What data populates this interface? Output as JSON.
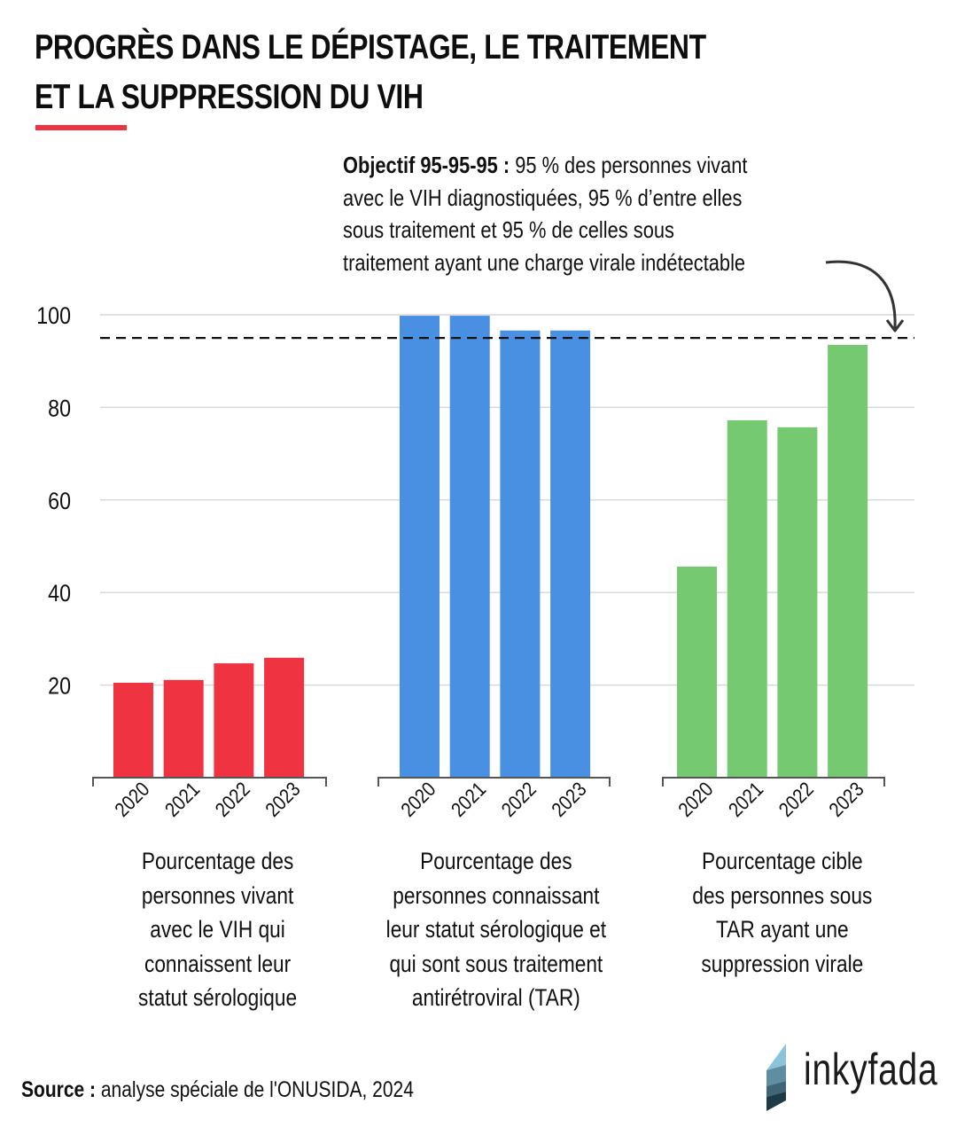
{
  "header": {
    "title_lines": [
      "PROGRÈS DANS LE DÉPISTAGE, LE TRAITEMENT",
      "ET LA SUPPRESSION DU VIH"
    ],
    "accent_color": "#ef3340"
  },
  "annotation": {
    "bold_prefix": "Objectif 95-95-95 :",
    "line1_rest": " 95 % des personnes vivant",
    "line2": "avec le VIH diagnostiquées, 95 % d’entre elles",
    "line3": "sous traitement et 95 % de celles sous",
    "line4": "traitement ayant une charge virale indétectable"
  },
  "chart_data": {
    "type": "bar",
    "title": "PROGRÈS DANS LE DÉPISTAGE, LE TRAITEMENT ET LA SUPPRESSION DU VIH",
    "xlabel": "",
    "ylabel": "",
    "ylim": [
      0,
      100
    ],
    "yticks": [
      20,
      40,
      60,
      80,
      100
    ],
    "grid": true,
    "categories": [
      "2020",
      "2021",
      "2022",
      "2023"
    ],
    "reference_line": {
      "value": 95,
      "style": "dashed",
      "label": "Objectif 95-95-95"
    },
    "groups": [
      {
        "name": "Pourcentage des personnes vivant avec le VIH qui connaissent leur statut sérologique",
        "label_lines": [
          "Pourcentage des",
          "personnes vivant",
          "avec le VIH qui",
          "connaissent leur",
          "statut sérologique"
        ],
        "color": "#ef3340",
        "values": [
          20.5,
          21.1,
          24.7,
          25.9
        ]
      },
      {
        "name": "Pourcentage des personnes connaissant leur statut sérologique et qui sont sous traitement antirétroviral (TAR)",
        "label_lines": [
          "Pourcentage des",
          "personnes connaissant",
          "leur statut sérologique et",
          "qui sont sous traitement",
          "antirétroviral (TAR)"
        ],
        "color": "#4a90e2",
        "values": [
          99.8,
          99.8,
          96.6,
          96.6
        ]
      },
      {
        "name": "Pourcentage cible des personnes sous TAR ayant une suppression virale",
        "label_lines": [
          "Pourcentage cible",
          "des personnes sous",
          "TAR ayant une",
          "suppression virale"
        ],
        "color": "#75c970",
        "values": [
          45.6,
          77.2,
          75.7,
          93.5
        ]
      }
    ]
  },
  "footer": {
    "source_label": "Source :",
    "source_text": " analyse spéciale de l'ONUSIDA, 2024"
  },
  "logo": {
    "text": "inkyfada",
    "colors": [
      "#8cc3dc",
      "#5f8ea3",
      "#3e6677",
      "#1f3a47"
    ]
  }
}
